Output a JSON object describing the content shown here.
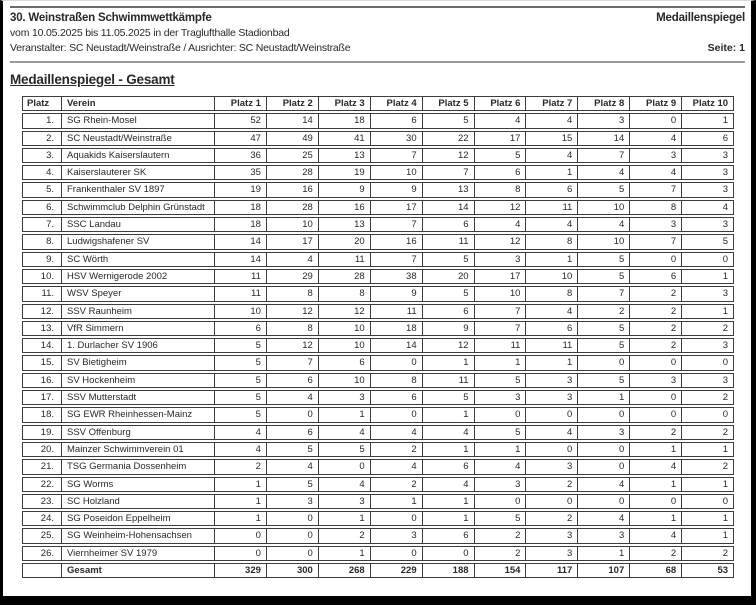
{
  "header": {
    "title_left": "30. Weinstraßen Schwimmwettkämpfe",
    "title_right": "Medaillenspiegel",
    "date_line": "vom 10.05.2025 bis 11.05.2025 in der Traglufthalle Stadionbad",
    "organizer_line": "Veranstalter: SC Neustadt/Weinstraße / Ausrichter: SC Neustadt/Weinstraße",
    "page_label": "Seite: 1"
  },
  "section_title": "Medaillenspiegel - Gesamt",
  "table": {
    "headers": [
      "Platz",
      "Verein",
      "Platz 1",
      "Platz 2",
      "Platz 3",
      "Platz 4",
      "Platz 5",
      "Platz 6",
      "Platz 7",
      "Platz 8",
      "Platz 9",
      "Platz 10"
    ],
    "rows": [
      {
        "rank": "1.",
        "club": "SG Rhein-Mosel",
        "values": [
          52,
          14,
          18,
          6,
          5,
          4,
          4,
          3,
          0,
          1
        ]
      },
      {
        "rank": "2.",
        "club": "SC Neustadt/Weinstraße",
        "values": [
          47,
          49,
          41,
          30,
          22,
          17,
          15,
          14,
          4,
          6
        ]
      },
      {
        "rank": "3.",
        "club": "Aquakids Kaiserslautern",
        "values": [
          36,
          25,
          13,
          7,
          12,
          5,
          4,
          7,
          3,
          3
        ]
      },
      {
        "rank": "4.",
        "club": "Kaiserslauterer SK",
        "values": [
          35,
          28,
          19,
          10,
          7,
          6,
          1,
          4,
          4,
          3
        ]
      },
      {
        "rank": "5.",
        "club": "Frankenthaler SV 1897",
        "values": [
          19,
          16,
          9,
          9,
          13,
          8,
          6,
          5,
          7,
          3
        ]
      },
      {
        "rank": "6.",
        "club": "Schwimmclub Delphin Grünstadt",
        "values": [
          18,
          28,
          16,
          17,
          14,
          12,
          11,
          10,
          8,
          4
        ]
      },
      {
        "rank": "7.",
        "club": "SSC Landau",
        "values": [
          18,
          10,
          13,
          7,
          6,
          4,
          4,
          4,
          3,
          3
        ]
      },
      {
        "rank": "8.",
        "club": "Ludwigshafener SV",
        "values": [
          14,
          17,
          20,
          16,
          11,
          12,
          8,
          10,
          7,
          5
        ]
      },
      {
        "rank": "9.",
        "club": "SC Wörth",
        "values": [
          14,
          4,
          11,
          7,
          5,
          3,
          1,
          5,
          0,
          0
        ]
      },
      {
        "rank": "10.",
        "club": "HSV Wernigerode 2002",
        "values": [
          11,
          29,
          28,
          38,
          20,
          17,
          10,
          5,
          6,
          1
        ]
      },
      {
        "rank": "11.",
        "club": "WSV Speyer",
        "values": [
          11,
          8,
          8,
          9,
          5,
          10,
          8,
          7,
          2,
          3
        ]
      },
      {
        "rank": "12.",
        "club": "SSV Raunheim",
        "values": [
          10,
          12,
          12,
          11,
          6,
          7,
          4,
          2,
          2,
          1
        ]
      },
      {
        "rank": "13.",
        "club": "VfR Simmern",
        "values": [
          6,
          8,
          10,
          18,
          9,
          7,
          6,
          5,
          2,
          2
        ]
      },
      {
        "rank": "14.",
        "club": "1. Durlacher SV 1906",
        "values": [
          5,
          12,
          10,
          14,
          12,
          11,
          11,
          5,
          2,
          3
        ]
      },
      {
        "rank": "15.",
        "club": "SV Bietigheim",
        "values": [
          5,
          7,
          6,
          0,
          1,
          1,
          1,
          0,
          0,
          0
        ]
      },
      {
        "rank": "16.",
        "club": "SV Hockenheim",
        "values": [
          5,
          6,
          10,
          8,
          11,
          5,
          3,
          5,
          3,
          3
        ]
      },
      {
        "rank": "17.",
        "club": "SSV Mutterstadt",
        "values": [
          5,
          4,
          3,
          6,
          5,
          3,
          3,
          1,
          0,
          2
        ]
      },
      {
        "rank": "18.",
        "club": "SG EWR Rheinhessen-Mainz",
        "values": [
          5,
          0,
          1,
          0,
          1,
          0,
          0,
          0,
          0,
          0
        ]
      },
      {
        "rank": "19.",
        "club": "SSV Offenburg",
        "values": [
          4,
          6,
          4,
          4,
          4,
          5,
          4,
          3,
          2,
          2
        ]
      },
      {
        "rank": "20.",
        "club": "Mainzer Schwimmverein 01",
        "values": [
          4,
          5,
          5,
          2,
          1,
          1,
          0,
          0,
          1,
          1
        ]
      },
      {
        "rank": "21.",
        "club": "TSG Germania Dossenheim",
        "values": [
          2,
          4,
          0,
          4,
          6,
          4,
          3,
          0,
          4,
          2
        ]
      },
      {
        "rank": "22.",
        "club": "SG Worms",
        "values": [
          1,
          5,
          4,
          2,
          4,
          3,
          2,
          4,
          1,
          1
        ]
      },
      {
        "rank": "23.",
        "club": "SC Holzland",
        "values": [
          1,
          3,
          3,
          1,
          1,
          0,
          0,
          0,
          0,
          0
        ]
      },
      {
        "rank": "24.",
        "club": "SG Poseidon Eppelheim",
        "values": [
          1,
          0,
          1,
          0,
          1,
          5,
          2,
          4,
          1,
          1
        ]
      },
      {
        "rank": "25.",
        "club": "SG Weinheim-Hohensachsen",
        "values": [
          0,
          0,
          2,
          3,
          6,
          2,
          3,
          3,
          4,
          1
        ]
      },
      {
        "rank": "26.",
        "club": "Viernheimer SV 1979",
        "values": [
          0,
          0,
          1,
          0,
          0,
          2,
          3,
          1,
          2,
          2
        ]
      }
    ],
    "total": {
      "rank": "",
      "club": "Gesamt",
      "values": [
        329,
        300,
        268,
        229,
        188,
        154,
        117,
        107,
        68,
        53
      ]
    }
  },
  "colors": {
    "text": "#282828",
    "table_border": "#3d3d3d",
    "top_rule": "#6b6b6b",
    "separator_rule": "#9a9a9a",
    "frame": "#000000",
    "background": "#ffffff"
  }
}
